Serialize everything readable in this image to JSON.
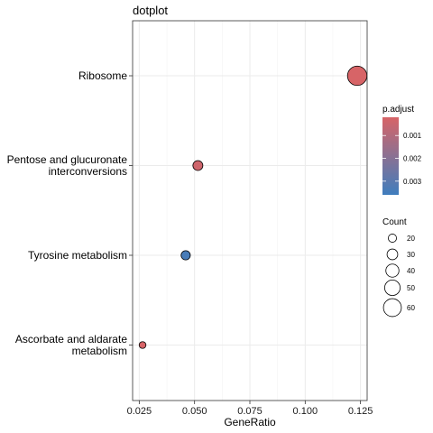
{
  "chart_data": {
    "type": "scatter",
    "title": "dotplot",
    "xlabel": "GeneRatio",
    "ylabel": "",
    "xlim": [
      0.022,
      0.128
    ],
    "xticks": [
      0.025,
      0.05,
      0.075,
      0.1,
      0.125
    ],
    "xtick_labels": [
      "0.025",
      "0.050",
      "0.075",
      "0.100",
      "0.125"
    ],
    "categories": [
      [
        "Ribosome"
      ],
      [
        "Pentose and glucuronate",
        "interconversions"
      ],
      [
        "Tyrosine metabolism"
      ],
      [
        "Ascorbate and aldarate",
        "metabolism"
      ]
    ],
    "points": [
      {
        "category_index": 0,
        "x": 0.1235,
        "count": 66,
        "p_adjust": 0.0002
      },
      {
        "category_index": 1,
        "x": 0.0515,
        "count": 27,
        "p_adjust": 0.0004
      },
      {
        "category_index": 2,
        "x": 0.046,
        "count": 24,
        "p_adjust": 0.0034
      },
      {
        "category_index": 3,
        "x": 0.0265,
        "count": 14,
        "p_adjust": 0.0002
      }
    ],
    "grid": true,
    "color_legend": {
      "title": "p.adjust",
      "range": [
        0.0002,
        0.0036
      ],
      "ticks": [
        0.001,
        0.002,
        0.003
      ],
      "tick_labels": [
        "0.001",
        "0.002",
        "0.003"
      ],
      "low_color": "#d76467",
      "high_color": "#3f7dbd"
    },
    "size_legend": {
      "title": "Count",
      "values": [
        20,
        30,
        40,
        50,
        60
      ],
      "labels": [
        "20",
        "30",
        "40",
        "50",
        "60"
      ]
    },
    "legend_position": "right"
  }
}
